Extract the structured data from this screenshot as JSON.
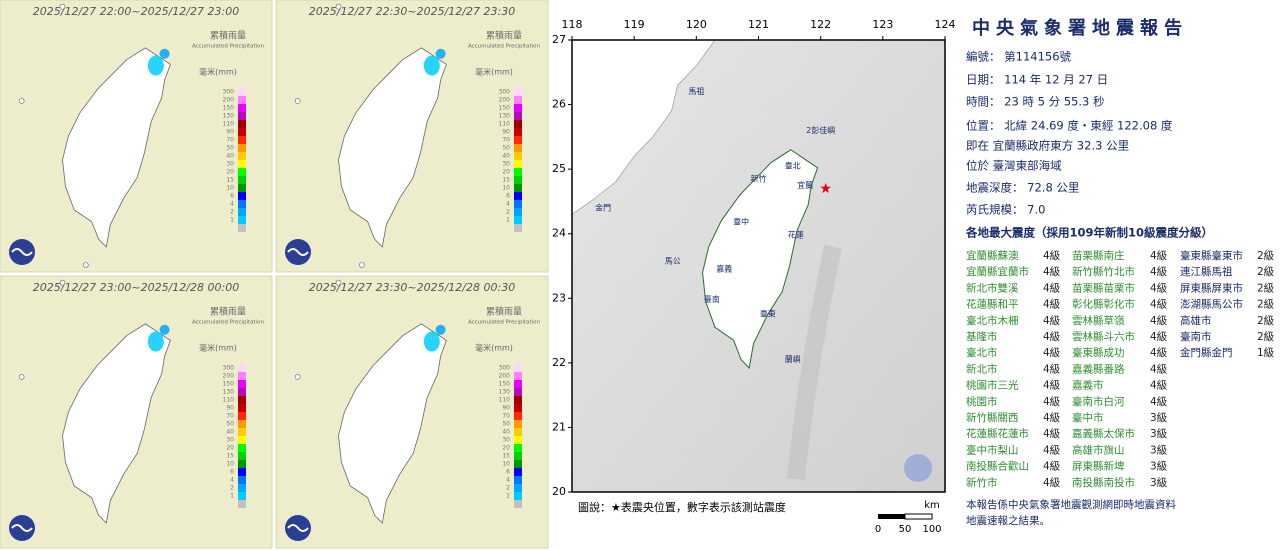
{
  "rain_panels": [
    {
      "title": "2025/12/27 22:00~2025/12/27 23:00"
    },
    {
      "title": "2025/12/27 22:30~2025/12/27 23:30"
    },
    {
      "title": "2025/12/27 23:00~2025/12/28 00:00"
    },
    {
      "title": "2025/12/27 23:30~2025/12/28 00:30"
    }
  ],
  "rain_legend": {
    "title": "累積雨量",
    "subtitle": "Accumulated Precipitation",
    "unit": "毫米(mm)",
    "labels": [
      300,
      200,
      150,
      130,
      110,
      90,
      70,
      50,
      40,
      30,
      20,
      15,
      10,
      6,
      4,
      2,
      1
    ],
    "colors": [
      "#ffd6fe",
      "#ff80ff",
      "#ea00ff",
      "#b50db5",
      "#9e0000",
      "#c20000",
      "#ff2a00",
      "#ff9900",
      "#ffcc00",
      "#fffb00",
      "#00fa00",
      "#00d200",
      "#009600",
      "#0000ff",
      "#0077ff",
      "#00a5ff",
      "#00ccff",
      "#c1c1c1"
    ]
  },
  "map": {
    "lon_ticks": [
      118,
      119,
      120,
      121,
      122,
      123,
      124
    ],
    "lat_ticks": [
      27,
      26,
      25,
      24,
      23,
      22,
      21,
      20
    ],
    "epicenter": {
      "lon": 122.08,
      "lat": 24.69
    },
    "places": [
      "馬祖",
      "2彭佳嶼",
      "臺北",
      "新竹",
      "宜蘭",
      "臺中",
      "花蓮",
      "馬公",
      "嘉義",
      "臺南",
      "臺東",
      "蘭嶼",
      "金門"
    ],
    "caption": "圖說：★表震央位置，數字表示該測站震度",
    "scale_unit": "km",
    "scale_labels": [
      "0",
      "50",
      "100"
    ]
  },
  "report": {
    "title": "中央氣象署地震報告",
    "lines": [
      "編號：  第114156號",
      "日期：  114 年 12 月 27 日",
      "時間：  23 時 5 分 55.3 秒",
      "位置：  北緯 24.69 度・東經 122.08 度",
      "即在  宜蘭縣政府東方 32.3 公里",
      "位於  臺灣東部海域",
      "地震深度：  72.8 公里",
      "芮氏規模：  7.0",
      "各地最大震度（採用109年新制10級震度分級）"
    ],
    "intensity_columns": [
      [
        [
          "宜蘭縣蘇澳",
          "4級"
        ],
        [
          "宜蘭縣宜蘭市",
          "4級"
        ],
        [
          "新北市雙溪",
          "4級"
        ],
        [
          "花蓮縣和平",
          "4級"
        ],
        [
          "臺北市木柵",
          "4級"
        ],
        [
          "基隆市",
          "4級"
        ],
        [
          "臺北市",
          "4級"
        ],
        [
          "新北市",
          "4級"
        ],
        [
          "桃園市三光",
          "4級"
        ],
        [
          "桃園市",
          "4級"
        ],
        [
          "新竹縣關西",
          "4級"
        ],
        [
          "花蓮縣花蓮市",
          "4級"
        ],
        [
          "臺中市梨山",
          "4級"
        ],
        [
          "南投縣合歡山",
          "4級"
        ],
        [
          "新竹市",
          "4級"
        ]
      ],
      [
        [
          "苗栗縣南庄",
          "4級"
        ],
        [
          "新竹縣竹北市",
          "4級"
        ],
        [
          "苗栗縣苗栗市",
          "4級"
        ],
        [
          "彰化縣彰化市",
          "4級"
        ],
        [
          "雲林縣草嶺",
          "4級"
        ],
        [
          "雲林縣斗六市",
          "4級"
        ],
        [
          "臺東縣成功",
          "4級"
        ],
        [
          "嘉義縣番路",
          "4級"
        ],
        [
          "嘉義市",
          "4級"
        ],
        [
          "臺南市白河",
          "4級"
        ],
        [
          "臺中市",
          "3級"
        ],
        [
          "嘉義縣太保市",
          "3級"
        ],
        [
          "高雄市旗山",
          "3級"
        ],
        [
          "屏東縣新埤",
          "3級"
        ],
        [
          "南投縣南投市",
          "3級"
        ]
      ],
      [
        [
          "臺東縣臺東市",
          "2級"
        ],
        [
          "連江縣馬祖",
          "2級"
        ],
        [
          "屏東縣屏東市",
          "2級"
        ],
        [
          "澎湖縣馬公市",
          "2級"
        ],
        [
          "高雄市",
          "2級"
        ],
        [
          "臺南市",
          "2級"
        ],
        [
          "金門縣金門",
          "1級"
        ]
      ]
    ],
    "footer": [
      "本報告係中央氣象署地震觀測網即時地震資料",
      "地震速報之結果。"
    ]
  }
}
